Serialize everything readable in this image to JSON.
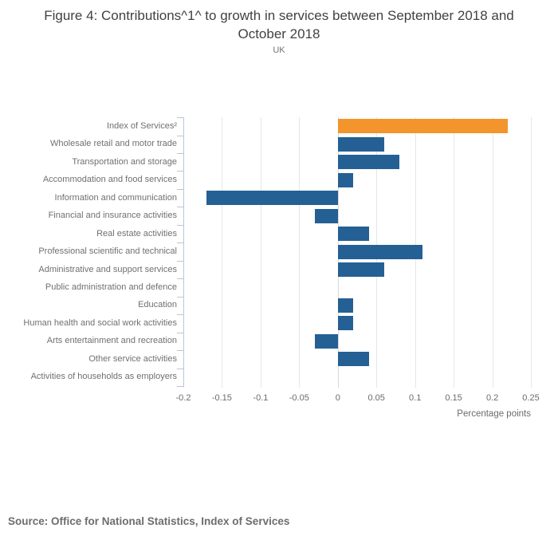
{
  "header": {
    "title": "Figure 4: Contributions^1^ to growth in services between September 2018 and October 2018",
    "subtitle": "UK"
  },
  "chart_data": {
    "type": "bar",
    "orientation": "horizontal",
    "title": "Figure 4: Contributions^1^ to growth in services between September 2018 and October 2018",
    "subtitle": "UK",
    "categories": [
      "Index of Services²",
      "Wholesale retail and motor trade",
      "Transportation and storage",
      "Accommodation and food services",
      "Information and communication",
      "Financial and insurance activities",
      "Real estate activities",
      "Professional scientific and technical",
      "Administrative and support services",
      "Public administration and defence",
      "Education",
      "Human health and social work activities",
      "Arts entertainment and recreation",
      "Other service activities",
      "Activities of households as employers"
    ],
    "values": [
      0.22,
      0.06,
      0.08,
      0.02,
      -0.17,
      -0.03,
      0.04,
      0.11,
      0.06,
      0,
      0.02,
      0.02,
      -0.03,
      0.04,
      0
    ],
    "highlight_index": 0,
    "xlabel": "Percentage points",
    "ylabel": "",
    "xlim": [
      -0.2,
      0.25
    ],
    "xticks": [
      -0.2,
      -0.15,
      -0.1,
      -0.05,
      0,
      0.05,
      0.1,
      0.15,
      0.2,
      0.25
    ],
    "xtick_labels": [
      "-0.2",
      "-0.15",
      "-0.1",
      "-0.05",
      "0",
      "0.05",
      "0.1",
      "0.15",
      "0.2",
      "0.25"
    ],
    "grid": true,
    "legend_position": "none",
    "colors": {
      "highlight_bar": "#f3942d",
      "default_bar": "#256094",
      "gridline": "#e6e6e6",
      "zero_line": "#d9d9d9",
      "y_axis": "#b9c5dd",
      "label_text": "#707070",
      "title_text": "#414142"
    }
  },
  "footer": {
    "source": "Source: Office for National Statistics, Index of Services"
  }
}
